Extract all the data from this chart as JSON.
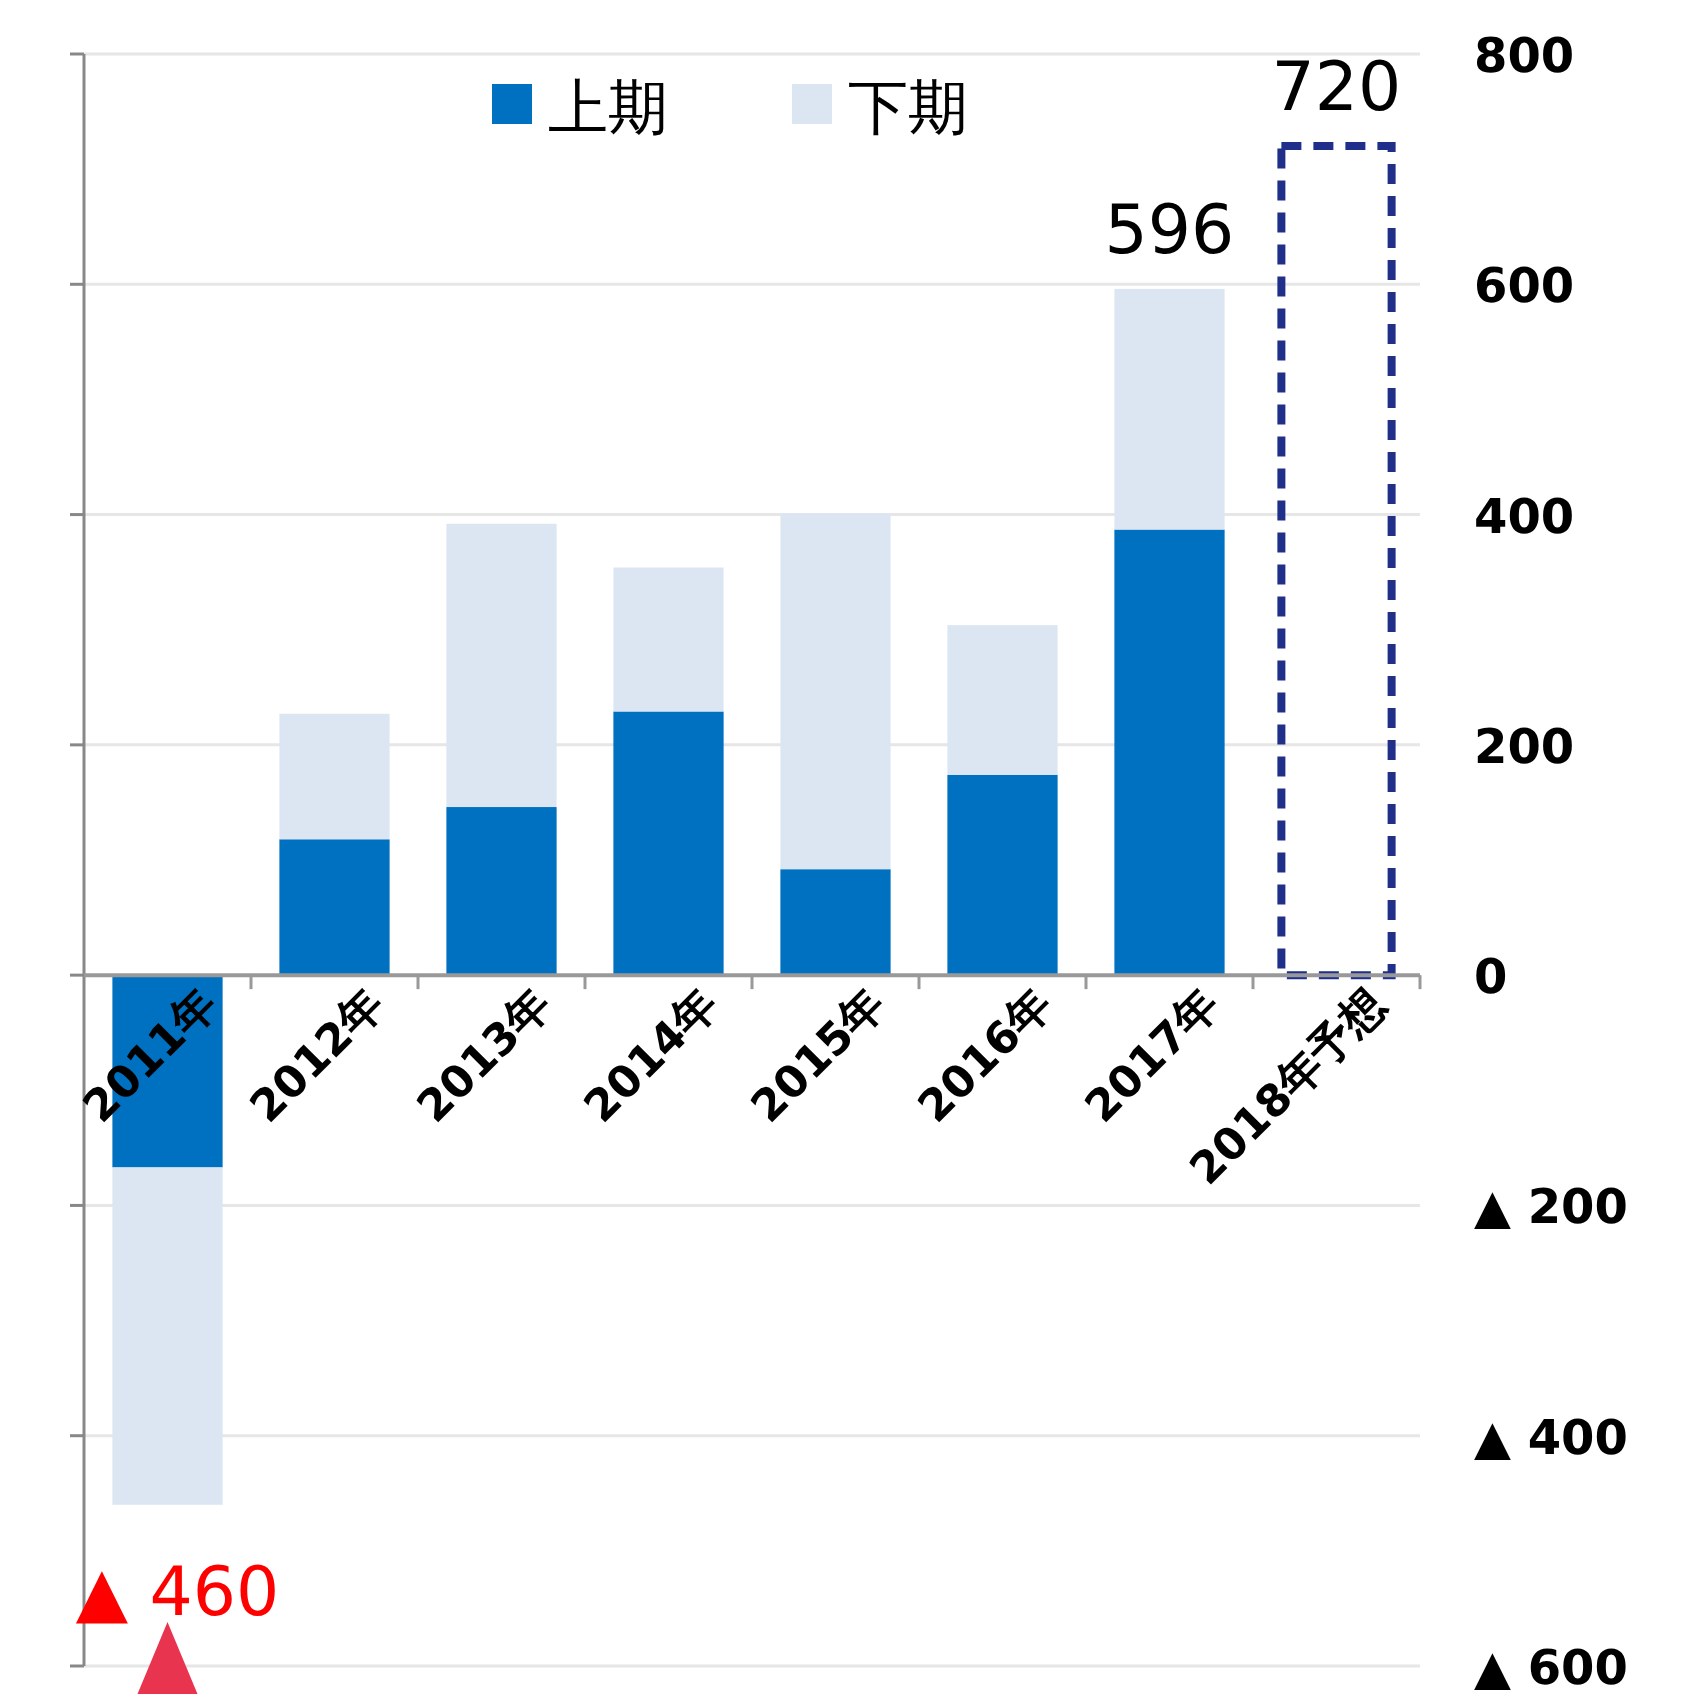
{
  "chart_data": {
    "type": "bar",
    "stacked": true,
    "categories": [
      "2011年",
      "2012年",
      "2013年",
      "2014年",
      "2015年",
      "2016年",
      "2017年",
      "2018年予想"
    ],
    "series": [
      {
        "name": "上期",
        "color": "#0070c0",
        "values": [
          -167,
          118,
          146,
          229,
          92,
          174,
          387,
          null
        ]
      },
      {
        "name": "下期",
        "color": "#dce6f2",
        "values": [
          -293,
          109,
          246,
          125,
          309,
          130,
          209,
          null
        ]
      },
      {
        "color": "#1f2f8a",
        "line_style": "dashed",
        "values": [
          null,
          null,
          null,
          null,
          null,
          null,
          null,
          720
        ]
      }
    ],
    "totals": [
      null,
      null,
      null,
      null,
      null,
      null,
      "596",
      "720"
    ],
    "annotations": [
      {
        "text": "▲ 460",
        "x": "2011年",
        "y": -460
      }
    ],
    "ylim": [
      -600,
      800
    ],
    "yticks": [
      {
        "value": -600,
        "label": "▲ 600"
      },
      {
        "value": -400,
        "label": "▲ 400"
      },
      {
        "value": -200,
        "label": "▲ 200"
      },
      0,
      200,
      400,
      600,
      800
    ],
    "grid": "y",
    "legend": "top"
  }
}
